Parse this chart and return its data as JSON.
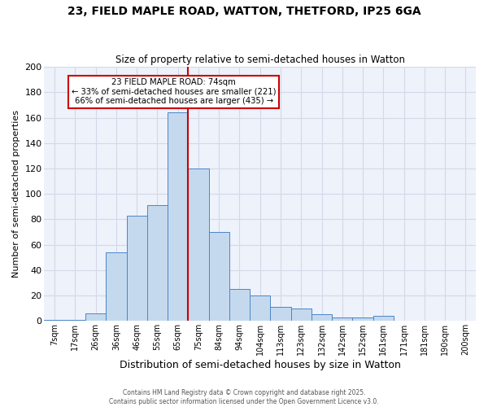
{
  "title": "23, FIELD MAPLE ROAD, WATTON, THETFORD, IP25 6GA",
  "subtitle": "Size of property relative to semi-detached houses in Watton",
  "xlabel": "Distribution of semi-detached houses by size in Watton",
  "ylabel": "Number of semi-detached properties",
  "bar_labels": [
    "7sqm",
    "17sqm",
    "26sqm",
    "36sqm",
    "46sqm",
    "55sqm",
    "65sqm",
    "75sqm",
    "84sqm",
    "94sqm",
    "104sqm",
    "113sqm",
    "123sqm",
    "132sqm",
    "142sqm",
    "152sqm",
    "161sqm",
    "171sqm",
    "181sqm",
    "190sqm",
    "200sqm"
  ],
  "bar_values": [
    1,
    1,
    6,
    54,
    83,
    91,
    164,
    120,
    70,
    25,
    20,
    11,
    10,
    5,
    3,
    3,
    4,
    0,
    0,
    0,
    0
  ],
  "bar_color": "#c5d9ee",
  "bar_edge_color": "#4a86c8",
  "grid_color": "#d4d8e8",
  "bg_color": "#edf2fb",
  "vline_index": 7,
  "property_label": "23 FIELD MAPLE ROAD: 74sqm",
  "smaller_pct": 33,
  "smaller_count": 221,
  "larger_pct": 66,
  "larger_count": 435,
  "annotation_box_color": "#ffffff",
  "annotation_box_edge": "#cc0000",
  "vline_color": "#cc0000",
  "footer1": "Contains HM Land Registry data © Crown copyright and database right 2025.",
  "footer2": "Contains public sector information licensed under the Open Government Licence v3.0.",
  "ylim": [
    0,
    200
  ],
  "yticks": [
    0,
    20,
    40,
    60,
    80,
    100,
    120,
    140,
    160,
    180,
    200
  ]
}
